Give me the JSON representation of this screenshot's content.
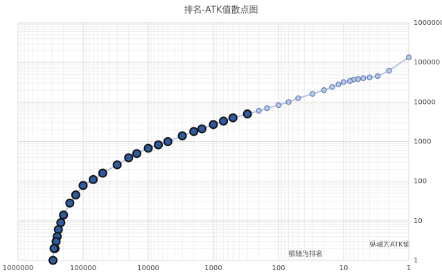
{
  "chart_data": {
    "type": "scatter",
    "title": "排名-ATK值散点图",
    "annotations": [
      "横轴为排名",
      "纵轴为ATK值"
    ],
    "xscale": "log",
    "yscale": "log",
    "grid": true,
    "color": "#2e5b9f",
    "xlim": [
      1000000,
      1
    ],
    "xticks": [
      1000000,
      100000,
      10000,
      1000,
      100,
      10,
      1
    ],
    "ylim": [
      1,
      1000000
    ],
    "yticks": [
      1,
      10,
      100,
      1000,
      10000,
      100000,
      1000000
    ],
    "x": [
      1,
      2,
      3,
      4,
      5,
      6,
      7,
      8,
      10,
      12,
      15,
      20,
      30,
      50,
      70,
      100,
      150,
      200,
      300,
      500,
      700,
      1000,
      1500,
      2000,
      3000,
      5000,
      7000,
      10000,
      15000,
      20000,
      30000,
      50000,
      70000,
      100000,
      130000,
      160000,
      200000,
      220000,
      240000,
      250000,
      260000,
      270000,
      280000,
      290000
    ],
    "values": [
      135000,
      62000,
      45000,
      42000,
      40000,
      38000,
      37000,
      34000,
      32000,
      28000,
      24000,
      20000,
      16000,
      12500,
      10000,
      8300,
      7000,
      6000,
      5000,
      4000,
      3300,
      2700,
      2100,
      1800,
      1400,
      1000,
      830,
      680,
      500,
      390,
      260,
      160,
      110,
      78,
      45,
      28,
      14,
      9,
      6,
      4,
      3,
      2,
      2,
      1
    ]
  }
}
